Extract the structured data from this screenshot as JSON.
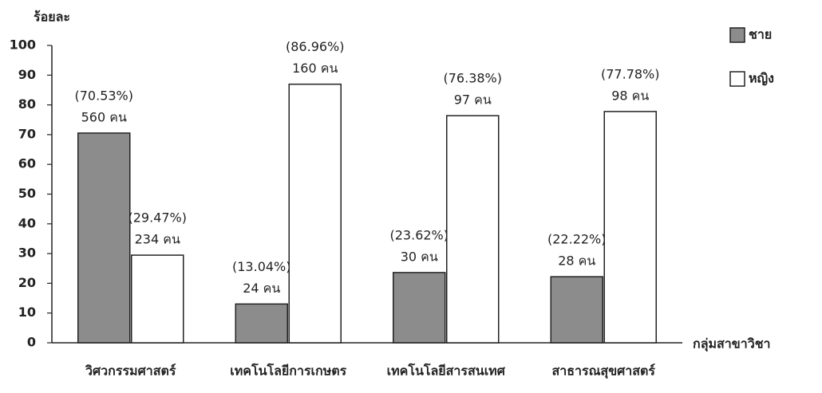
{
  "chart_data": {
    "type": "bar",
    "y_label": "ร้อยละ",
    "x_label": "กลุ่มสาขาวิชา",
    "categories": [
      "วิศวกรรมศาสตร์",
      "เทคโนโลยีการเกษตร",
      "เทคโนโลยีสารสนเทศ",
      "สาธารณสุขศาสตร์"
    ],
    "series": [
      {
        "name": "ชาย",
        "color": "#8c8c8c",
        "values": [
          70.53,
          13.04,
          23.62,
          22.22
        ],
        "value_labels": [
          "(70.53%)",
          "(13.04%)",
          "(23.62%)",
          "(22.22%)"
        ],
        "count_labels": [
          "560 คน",
          "24 คน",
          "30 คน",
          "28 คน"
        ]
      },
      {
        "name": "หญิง",
        "color": "#ffffff",
        "values": [
          29.47,
          86.96,
          76.38,
          77.78
        ],
        "value_labels": [
          "(29.47%)",
          "(86.96%)",
          "(76.38%)",
          "(77.78%)"
        ],
        "count_labels": [
          "234 คน",
          "160 คน",
          "97 คน",
          "98 คน"
        ]
      }
    ],
    "ylim": [
      0,
      100
    ],
    "yticks": [
      0,
      10,
      20,
      30,
      40,
      50,
      60,
      70,
      80,
      90,
      100
    ],
    "grid": false,
    "legend": "top-right"
  }
}
